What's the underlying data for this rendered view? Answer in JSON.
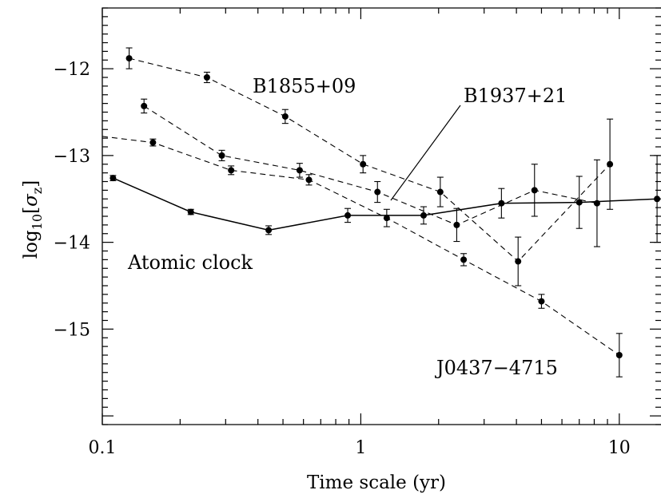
{
  "chart_data": {
    "type": "line",
    "title": "",
    "xlabel": "Time scale (yr)",
    "ylabel_parts": {
      "base": "log",
      "sub": "10",
      "open": "[",
      "sigma": "σ",
      "sigma_sub": "z",
      "close": "]"
    },
    "xscale": "log",
    "xlim": [
      0.1,
      14.5
    ],
    "ylim": [
      -16.1,
      -11.3
    ],
    "xticks": [
      {
        "value": 0.1,
        "label": "0.1"
      },
      {
        "value": 1,
        "label": "1"
      },
      {
        "value": 10,
        "label": "10"
      }
    ],
    "yticks": [
      {
        "value": -12,
        "label": "−12"
      },
      {
        "value": -13,
        "label": "−13"
      },
      {
        "value": -14,
        "label": "−14"
      },
      {
        "value": -15,
        "label": "−15"
      }
    ],
    "grid": false,
    "series": [
      {
        "name": "Atomic clock",
        "style": "solid",
        "points": [
          {
            "x": 0.11,
            "y": -13.26,
            "err": 0.03
          },
          {
            "x": 0.22,
            "y": -13.65,
            "err": 0.03
          },
          {
            "x": 0.44,
            "y": -13.86,
            "err": 0.05
          },
          {
            "x": 0.89,
            "y": -13.69,
            "err": 0.08
          },
          {
            "x": 1.75,
            "y": -13.69,
            "err": 0.1
          },
          {
            "x": 3.5,
            "y": -13.55,
            "err": 0.17
          },
          {
            "x": 7.0,
            "y": -13.54,
            "err": 0.3
          },
          {
            "x": 14.0,
            "y": -13.5,
            "err": 0.5
          }
        ]
      },
      {
        "name": "B1855+09",
        "style": "dashed",
        "points": [
          {
            "x": 0.127,
            "y": -11.88,
            "err": 0.12
          },
          {
            "x": 0.254,
            "y": -12.1,
            "err": 0.06
          },
          {
            "x": 0.51,
            "y": -12.55,
            "err": 0.08
          },
          {
            "x": 1.02,
            "y": -13.1,
            "err": 0.1
          },
          {
            "x": 2.03,
            "y": -13.42,
            "err": 0.17
          },
          {
            "x": 4.06,
            "y": -14.22,
            "err": 0.28
          },
          {
            "x": 9.2,
            "y": -13.1,
            "err": 0.52
          }
        ]
      },
      {
        "name": "B1937+21",
        "style": "dashed",
        "points": [
          {
            "x": 0.1,
            "y": -12.78,
            "err": null
          },
          {
            "x": 0.157,
            "y": -12.85,
            "err": 0.04
          },
          {
            "x": 0.315,
            "y": -13.17,
            "err": 0.05
          },
          {
            "x": 0.63,
            "y": -13.28,
            "err": 0.06
          },
          {
            "x": 1.26,
            "y": -13.72,
            "err": 0.1
          },
          {
            "x": 2.5,
            "y": -14.2,
            "err": 0.07
          },
          {
            "x": 5.0,
            "y": -14.68,
            "err": 0.08
          },
          {
            "x": 10.0,
            "y": -15.3,
            "err": 0.25
          }
        ]
      },
      {
        "name": "J0437−4715",
        "style": "dashed",
        "points": [
          {
            "x": 0.145,
            "y": -12.43,
            "err": 0.08
          },
          {
            "x": 0.29,
            "y": -13.0,
            "err": 0.06
          },
          {
            "x": 0.58,
            "y": -13.17,
            "err": 0.08
          },
          {
            "x": 1.16,
            "y": -13.42,
            "err": 0.12
          },
          {
            "x": 2.35,
            "y": -13.8,
            "err": 0.19
          },
          {
            "x": 4.7,
            "y": -13.4,
            "err": 0.3
          },
          {
            "x": 8.2,
            "y": -13.55,
            "err": 0.5
          }
        ]
      }
    ],
    "annotations": [
      {
        "text": "B1855+09"
      },
      {
        "text": "B1937+21"
      },
      {
        "text": "Atomic clock"
      },
      {
        "text": "J0437−4715"
      }
    ]
  }
}
